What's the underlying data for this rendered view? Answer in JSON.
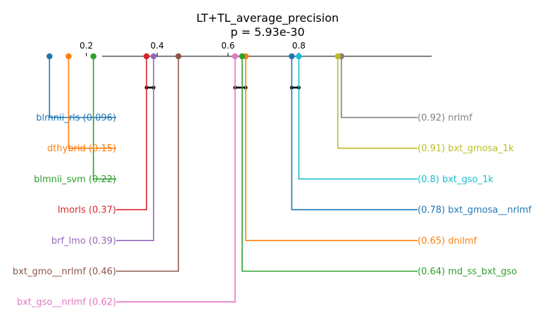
{
  "chart_data": {
    "type": "critical-difference",
    "title": "LT+TL_average_precision",
    "subtitle": "p = 5.93e-30",
    "axis": {
      "xlim": [
        0,
        1
      ],
      "ticks": [
        0.2,
        0.4,
        0.6,
        0.8
      ],
      "tick_labels": [
        "0.2",
        "0.4",
        "0.6",
        "0.8"
      ]
    },
    "left_methods": [
      {
        "name": "blmnii_rls",
        "value": 0.096,
        "label": "blmnii_rls (0.096)",
        "color": "#1f77b4"
      },
      {
        "name": "dthybrid",
        "value": 0.15,
        "label": "dthybrid (0.15)",
        "color": "#ff7f0e"
      },
      {
        "name": "blmnii_svm",
        "value": 0.22,
        "label": "blmnii_svm (0.22)",
        "color": "#2ca02c"
      },
      {
        "name": "lmorls",
        "value": 0.37,
        "label": "lmorls (0.37)",
        "color": "#d62728"
      },
      {
        "name": "brf_lmo",
        "value": 0.39,
        "label": "brf_lmo (0.39)",
        "color": "#9467bd"
      },
      {
        "name": "bxt_gmo__nrlmf",
        "value": 0.46,
        "label": "bxt_gmo__nrlmf (0.46)",
        "color": "#8c564b"
      },
      {
        "name": "bxt_gso__nrlmf",
        "value": 0.62,
        "label": "bxt_gso__nrlmf (0.62)",
        "color": "#e377c2"
      }
    ],
    "right_methods": [
      {
        "name": "nrlmf",
        "value": 0.92,
        "label": "(0.92) nrlmf",
        "color": "#7f7f7f"
      },
      {
        "name": "bxt_gmosa_1k",
        "value": 0.91,
        "label": "(0.91) bxt_gmosa_1k",
        "color": "#bcbd22"
      },
      {
        "name": "bxt_gso_1k",
        "value": 0.8,
        "label": "(0.8) bxt_gso_1k",
        "color": "#17becf"
      },
      {
        "name": "bxt_gmosa__nrlmf",
        "value": 0.78,
        "label": "(0.78) bxt_gmosa__nrlmf",
        "color": "#1f77b4"
      },
      {
        "name": "dnilmf",
        "value": 0.65,
        "label": "(0.65) dnilmf",
        "color": "#ff7f0e"
      },
      {
        "name": "md_ss_bxt_gso",
        "value": 0.64,
        "label": "(0.64) md_ss_bxt_gso",
        "color": "#2ca02c"
      }
    ],
    "cliques": [
      {
        "from": 0.37,
        "to": 0.39
      },
      {
        "from": 0.62,
        "to": 0.65
      },
      {
        "from": 0.78,
        "to": 0.8
      }
    ]
  }
}
